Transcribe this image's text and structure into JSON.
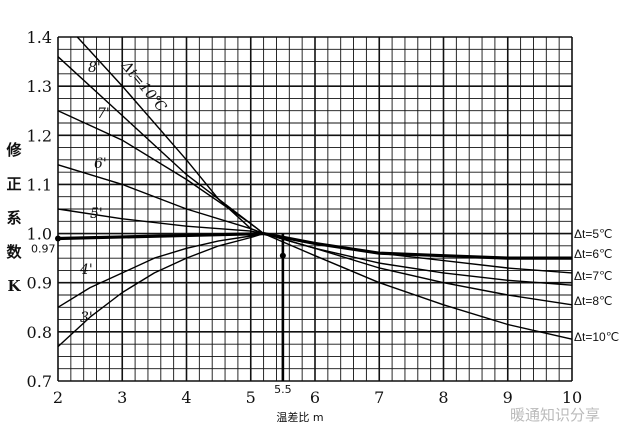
{
  "chart_data": {
    "type": "line",
    "xlim": [
      2,
      10
    ],
    "ylim": [
      0.7,
      1.4
    ],
    "x_ticks": [
      "2",
      "3",
      "4",
      "5",
      "6",
      "7",
      "8",
      "9",
      "10"
    ],
    "y_ticks": [
      "0.7",
      "0.8",
      "0.9",
      "1.0",
      "1.1",
      "1.2",
      "1.3",
      "1.4"
    ],
    "x_marker": {
      "value": 5.5,
      "label": "5.5"
    },
    "y_marker": {
      "value": 0.97,
      "label": "0.97"
    },
    "ylabel_chars": [
      "修",
      "正",
      "系",
      "数",
      "K"
    ],
    "xlabel": "温差比 m",
    "grid": true,
    "watermark": "暖通知识分享",
    "series": [
      {
        "name": "3",
        "right_label": "",
        "points": [
          [
            2,
            0.77
          ],
          [
            2.5,
            0.83
          ],
          [
            3,
            0.88
          ],
          [
            3.5,
            0.92
          ],
          [
            4,
            0.95
          ],
          [
            4.5,
            0.975
          ],
          [
            5,
            0.992
          ],
          [
            5.2,
            1.0
          ]
        ]
      },
      {
        "name": "4",
        "right_label": "",
        "points": [
          [
            2,
            0.85
          ],
          [
            2.5,
            0.89
          ],
          [
            3,
            0.92
          ],
          [
            3.5,
            0.95
          ],
          [
            4,
            0.97
          ],
          [
            4.5,
            0.985
          ],
          [
            5,
            0.995
          ],
          [
            5.2,
            1.0
          ]
        ]
      },
      {
        "name": "",
        "right_label": "Δt=5℃",
        "points": [
          [
            2,
            0.99
          ],
          [
            5.2,
            1.0
          ],
          [
            6,
            0.98
          ],
          [
            7,
            0.96
          ],
          [
            8,
            0.955
          ],
          [
            9,
            0.95
          ],
          [
            10,
            0.95
          ]
        ]
      },
      {
        "name": "5",
        "right_label": "Δt=6℃",
        "points": [
          [
            2,
            1.05
          ],
          [
            3,
            1.03
          ],
          [
            4,
            1.015
          ],
          [
            5,
            1.005
          ],
          [
            5.2,
            1.0
          ],
          [
            6,
            0.98
          ],
          [
            7,
            0.96
          ],
          [
            8,
            0.945
          ],
          [
            9,
            0.93
          ],
          [
            10,
            0.92
          ]
        ]
      },
      {
        "name": "6",
        "right_label": "Δt=7℃",
        "points": [
          [
            2,
            1.14
          ],
          [
            3,
            1.1
          ],
          [
            4,
            1.05
          ],
          [
            5,
            1.01
          ],
          [
            5.2,
            1.0
          ],
          [
            6,
            0.97
          ],
          [
            7,
            0.94
          ],
          [
            8,
            0.92
          ],
          [
            9,
            0.905
          ],
          [
            10,
            0.895
          ]
        ]
      },
      {
        "name": "7",
        "right_label": "Δt=8℃",
        "points": [
          [
            2,
            1.25
          ],
          [
            3,
            1.19
          ],
          [
            4,
            1.11
          ],
          [
            5,
            1.02
          ],
          [
            5.2,
            1.0
          ],
          [
            6,
            0.97
          ],
          [
            7,
            0.93
          ],
          [
            8,
            0.9
          ],
          [
            9,
            0.875
          ],
          [
            10,
            0.855
          ]
        ]
      },
      {
        "name": "8",
        "right_label": "",
        "points": [
          [
            2,
            1.36
          ],
          [
            3,
            1.24
          ],
          [
            4,
            1.12
          ],
          [
            5,
            1.02
          ],
          [
            5.2,
            1.0
          ]
        ]
      },
      {
        "name": "Δt=10℃",
        "right_label": "Δt=10℃",
        "points": [
          [
            2.3,
            1.4
          ],
          [
            3,
            1.3
          ],
          [
            4,
            1.15
          ],
          [
            4.5,
            1.07
          ],
          [
            5,
            1.01
          ],
          [
            5.2,
            1.0
          ],
          [
            6,
            0.955
          ],
          [
            7,
            0.9
          ],
          [
            8,
            0.855
          ],
          [
            9,
            0.815
          ],
          [
            10,
            0.785
          ]
        ]
      }
    ]
  }
}
